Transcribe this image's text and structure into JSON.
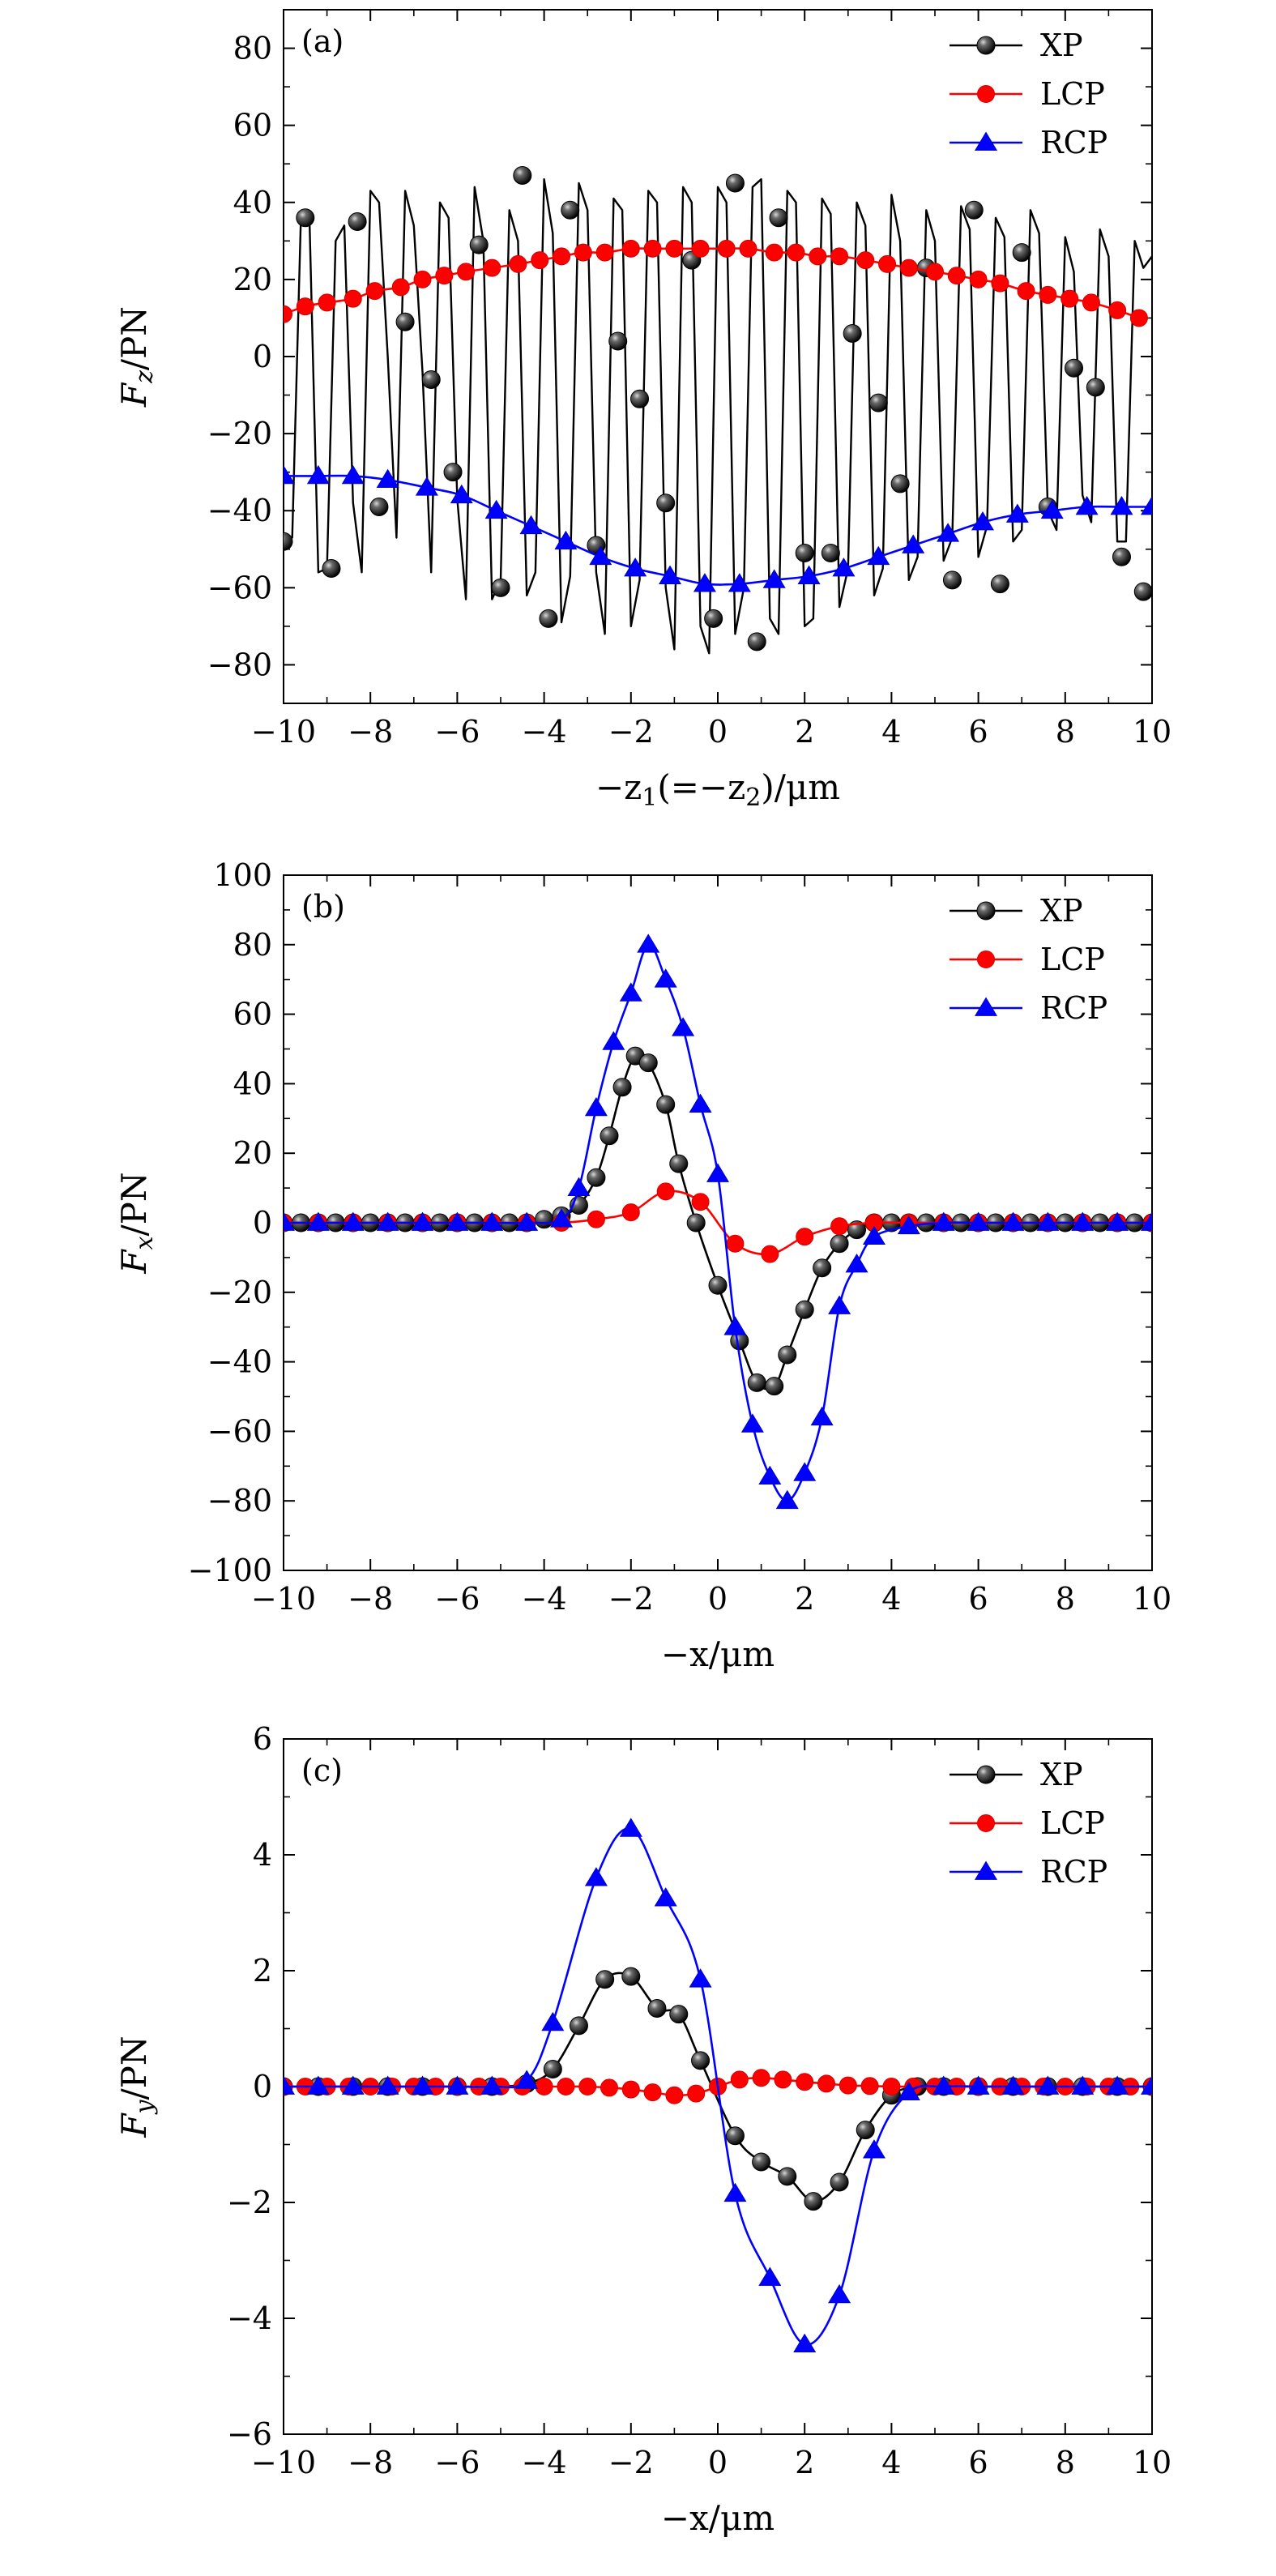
{
  "chart_data": [
    {
      "panel_label": "(a)",
      "type": "line",
      "ylabel": "F_z/PN",
      "ylabel_base": "F",
      "ylabel_sub": "z",
      "ylabel_tail": "/PN",
      "xlabel": "−z1(=−z2)/μm",
      "xlabel_parts": [
        "−z",
        "1",
        "(=−z",
        "2",
        ")/μm"
      ],
      "xlim": [
        -10,
        10
      ],
      "ylim": [
        -90,
        90
      ],
      "xticks": [
        -10,
        -8,
        -6,
        -4,
        -2,
        0,
        2,
        4,
        6,
        8,
        10
      ],
      "yticks": [
        -80,
        -60,
        -40,
        -20,
        0,
        20,
        40,
        60,
        80
      ],
      "xtick_labels": [
        "−10",
        "−8",
        "−6",
        "−4",
        "−2",
        "0",
        "2",
        "4",
        "6",
        "8",
        "10"
      ],
      "ytick_labels": [
        "−80",
        "−60",
        "−40",
        "−20",
        "0",
        "20",
        "40",
        "60",
        "80"
      ],
      "series": [
        {
          "name": "XP",
          "color": "#000000",
          "marker": "sphere",
          "line_x": [
            -10.0,
            -9.8,
            -9.6,
            -9.4,
            -9.2,
            -9.0,
            -8.8,
            -8.6,
            -8.4,
            -8.2,
            -8.0,
            -7.8,
            -7.6,
            -7.4,
            -7.2,
            -7.0,
            -6.8,
            -6.6,
            -6.4,
            -6.2,
            -6.0,
            -5.8,
            -5.6,
            -5.4,
            -5.2,
            -5.0,
            -4.8,
            -4.6,
            -4.4,
            -4.2,
            -4.0,
            -3.8,
            -3.6,
            -3.4,
            -3.2,
            -3.0,
            -2.8,
            -2.6,
            -2.4,
            -2.2,
            -2.0,
            -1.8,
            -1.6,
            -1.4,
            -1.2,
            -1.0,
            -0.8,
            -0.6,
            -0.4,
            -0.2,
            0.0,
            0.2,
            0.4,
            0.6,
            0.8,
            1.0,
            1.2,
            1.4,
            1.6,
            1.8,
            2.0,
            2.2,
            2.4,
            2.6,
            2.8,
            3.0,
            3.2,
            3.4,
            3.6,
            3.8,
            4.0,
            4.2,
            4.4,
            4.6,
            4.8,
            5.0,
            5.2,
            5.4,
            5.6,
            5.8,
            6.0,
            6.2,
            6.4,
            6.6,
            6.8,
            7.0,
            7.2,
            7.4,
            7.6,
            7.8,
            8.0,
            8.2,
            8.4,
            8.6,
            8.8,
            9.0,
            9.2,
            9.4,
            9.6,
            9.8,
            10.0
          ],
          "line_y": [
            -48,
            -47,
            36,
            34,
            -56,
            -55,
            30,
            34,
            -38,
            -56,
            43,
            40,
            0,
            -47,
            43,
            34,
            -4,
            -56,
            40,
            36,
            -37,
            -63,
            44,
            30,
            -63,
            -58,
            38,
            30,
            -62,
            -56,
            46,
            32,
            -69,
            -57,
            45,
            38,
            -56,
            -72,
            41,
            38,
            -70,
            -58,
            43,
            40,
            -60,
            -76,
            44,
            40,
            -70,
            -77,
            44,
            40,
            -72,
            -60,
            44,
            46,
            -68,
            -72,
            43,
            40,
            -70,
            -68,
            41,
            37,
            -65,
            -55,
            40,
            34,
            -62,
            -55,
            42,
            30,
            -58,
            -52,
            38,
            30,
            -53,
            -47,
            39,
            33,
            -52,
            -44,
            36,
            31,
            -48,
            -45,
            38,
            32,
            -40,
            -45,
            31,
            22,
            -36,
            -43,
            33,
            26,
            -48,
            -48,
            30,
            23,
            26
          ],
          "points_x": [
            -10.0,
            -9.5,
            -8.9,
            -8.3,
            -7.8,
            -7.2,
            -6.6,
            -6.1,
            -5.5,
            -5.0,
            -4.5,
            -3.9,
            -3.4,
            -2.8,
            -2.3,
            -1.8,
            -1.2,
            -0.6,
            -0.1,
            0.4,
            0.9,
            1.4,
            2.0,
            2.6,
            3.1,
            3.7,
            4.2,
            4.8,
            5.4,
            5.9,
            6.5,
            7.0,
            7.6,
            8.2,
            8.7,
            9.3,
            9.8
          ],
          "points_y": [
            -48,
            36,
            -55,
            35,
            -39,
            9,
            -6,
            -30,
            29,
            -60,
            47,
            -68,
            38,
            -49,
            4,
            -11,
            -38,
            25,
            -68,
            45,
            -74,
            36,
            -51,
            -51,
            6,
            -12,
            -33,
            23,
            -58,
            38,
            -59,
            27,
            -39,
            -3,
            -8,
            -52,
            -61
          ]
        },
        {
          "name": "LCP",
          "color": "#ff0000",
          "marker": "circle",
          "points_x": [
            -10.0,
            -9.5,
            -9.0,
            -8.4,
            -7.9,
            -7.3,
            -6.8,
            -6.3,
            -5.8,
            -5.2,
            -4.6,
            -4.1,
            -3.6,
            -3.1,
            -2.6,
            -2.0,
            -1.5,
            -1.0,
            -0.4,
            0.2,
            0.7,
            1.3,
            1.8,
            2.3,
            2.8,
            3.4,
            3.9,
            4.4,
            5.0,
            5.5,
            6.0,
            6.5,
            7.1,
            7.6,
            8.1,
            8.6,
            9.2,
            9.7
          ],
          "points_y": [
            11,
            13,
            14,
            15,
            17,
            18,
            20,
            21,
            22,
            23,
            24,
            25,
            26,
            27,
            27,
            28,
            28,
            28,
            28,
            28,
            28,
            27,
            27,
            26,
            26,
            25,
            24,
            23,
            22,
            21,
            20,
            19,
            17,
            16,
            15,
            14,
            12,
            10
          ]
        },
        {
          "name": "RCP",
          "color": "#0000ff",
          "marker": "triangle",
          "points_x": [
            -10.0,
            -9.2,
            -8.4,
            -7.6,
            -6.7,
            -5.9,
            -5.1,
            -4.3,
            -3.5,
            -2.7,
            -1.9,
            -1.1,
            -0.3,
            0.5,
            1.3,
            2.1,
            2.9,
            3.7,
            4.5,
            5.3,
            6.1,
            6.9,
            7.7,
            8.5,
            9.3,
            10.0
          ],
          "points_y": [
            -31,
            -31,
            -31,
            -32,
            -34,
            -36,
            -40,
            -44,
            -48,
            -52,
            -55,
            -57,
            -59,
            -59,
            -58,
            -57,
            -55,
            -52,
            -49,
            -46,
            -43,
            -41,
            -40,
            -39,
            -39,
            -39
          ]
        }
      ]
    },
    {
      "panel_label": "(b)",
      "type": "line",
      "ylabel": "F_x/PN",
      "ylabel_base": "F",
      "ylabel_sub": "x",
      "ylabel_tail": "/PN",
      "xlabel": "−x/μm",
      "xlabel_parts": [
        "−x/μm"
      ],
      "xlim": [
        -10,
        10
      ],
      "ylim": [
        -100,
        100
      ],
      "xticks": [
        -10,
        -8,
        -6,
        -4,
        -2,
        0,
        2,
        4,
        6,
        8,
        10
      ],
      "yticks": [
        -100,
        -80,
        -60,
        -40,
        -20,
        0,
        20,
        40,
        60,
        80,
        100
      ],
      "xtick_labels": [
        "−10",
        "−8",
        "−6",
        "−4",
        "−2",
        "0",
        "2",
        "4",
        "6",
        "8",
        "10"
      ],
      "ytick_labels": [
        "−100",
        "−80",
        "−60",
        "−40",
        "−20",
        "0",
        "20",
        "40",
        "60",
        "80",
        "100"
      ],
      "series": [
        {
          "name": "XP",
          "color": "#000000",
          "marker": "sphere",
          "points_x": [
            -10.0,
            -9.6,
            -9.2,
            -8.8,
            -8.4,
            -8.0,
            -7.6,
            -7.2,
            -6.8,
            -6.4,
            -6.0,
            -5.6,
            -5.2,
            -4.8,
            -4.4,
            -4.0,
            -3.6,
            -3.2,
            -2.8,
            -2.5,
            -2.2,
            -1.9,
            -1.6,
            -1.2,
            -0.9,
            -0.5,
            0.0,
            0.5,
            0.9,
            1.3,
            1.6,
            2.0,
            2.4,
            2.8,
            3.2,
            3.6,
            4.0,
            4.4,
            4.8,
            5.2,
            5.6,
            6.0,
            6.4,
            6.8,
            7.2,
            7.6,
            8.0,
            8.4,
            8.8,
            9.2,
            9.6,
            10.0
          ],
          "points_y": [
            0,
            0,
            0,
            0,
            0,
            0,
            0,
            0,
            0,
            0,
            0,
            0,
            0,
            0,
            0,
            1,
            2,
            5,
            13,
            25,
            39,
            48,
            46,
            34,
            17,
            0,
            -18,
            -34,
            -46,
            -47,
            -38,
            -25,
            -13,
            -6,
            -2,
            0,
            0,
            0,
            0,
            0,
            0,
            0,
            0,
            0,
            0,
            0,
            0,
            0,
            0,
            0,
            0,
            0
          ]
        },
        {
          "name": "LCP",
          "color": "#ff0000",
          "marker": "circle",
          "points_x": [
            -10.0,
            -9.2,
            -8.4,
            -7.6,
            -6.8,
            -6.0,
            -5.2,
            -4.4,
            -3.6,
            -2.8,
            -2.0,
            -1.2,
            -0.4,
            0.4,
            1.2,
            2.0,
            2.8,
            3.6,
            4.4,
            5.2,
            6.0,
            6.8,
            7.6,
            8.4,
            9.2,
            10.0
          ],
          "points_y": [
            0,
            0,
            0,
            0,
            0,
            0,
            0,
            0,
            0,
            1,
            3,
            9,
            6,
            -6,
            -9,
            -4,
            -1,
            0,
            0,
            0,
            0,
            0,
            0,
            0,
            0,
            0
          ]
        },
        {
          "name": "RCP",
          "color": "#0000ff",
          "marker": "triangle",
          "points_x": [
            -10.0,
            -9.2,
            -8.4,
            -7.6,
            -6.8,
            -6.0,
            -5.2,
            -4.4,
            -3.6,
            -3.2,
            -2.8,
            -2.4,
            -2.0,
            -1.6,
            -1.2,
            -0.8,
            -0.4,
            0.0,
            0.4,
            0.8,
            1.2,
            1.6,
            2.0,
            2.4,
            2.8,
            3.2,
            3.6,
            4.4,
            5.2,
            6.0,
            6.8,
            7.6,
            8.4,
            9.2,
            10.0
          ],
          "points_y": [
            0,
            0,
            0,
            0,
            0,
            0,
            0,
            0,
            1,
            10,
            33,
            52,
            66,
            80,
            70,
            56,
            34,
            14,
            -30,
            -58,
            -73,
            -80,
            -72,
            -56,
            -24,
            -12,
            -4,
            -1,
            0,
            0,
            0,
            0,
            0,
            0,
            0
          ]
        }
      ]
    },
    {
      "panel_label": "(c)",
      "type": "line",
      "ylabel": "F_y/PN",
      "ylabel_base": "F",
      "ylabel_sub": "y",
      "ylabel_tail": "/PN",
      "xlabel": "−x/μm",
      "xlabel_parts": [
        "−x/μm"
      ],
      "xlim": [
        -10,
        10
      ],
      "ylim": [
        -6,
        6
      ],
      "xticks": [
        -10,
        -8,
        -6,
        -4,
        -2,
        0,
        2,
        4,
        6,
        8,
        10
      ],
      "yticks": [
        -6,
        -4,
        -2,
        0,
        2,
        4,
        6
      ],
      "xtick_labels": [
        "−10",
        "−8",
        "−6",
        "−4",
        "−2",
        "0",
        "2",
        "4",
        "6",
        "8",
        "10"
      ],
      "ytick_labels": [
        "−6",
        "−4",
        "−2",
        "0",
        "2",
        "4",
        "6"
      ],
      "series": [
        {
          "name": "XP",
          "color": "#000000",
          "marker": "sphere",
          "points_x": [
            -10.0,
            -9.2,
            -8.4,
            -7.6,
            -6.8,
            -6.0,
            -5.2,
            -4.4,
            -3.8,
            -3.2,
            -2.6,
            -2.0,
            -1.4,
            -0.9,
            -0.4,
            0.4,
            1.0,
            1.6,
            2.2,
            2.8,
            3.4,
            4.0,
            4.6,
            5.2,
            6.0,
            6.8,
            7.6,
            8.4,
            9.2,
            10.0
          ],
          "points_y": [
            0,
            0,
            0,
            0,
            0,
            0,
            0,
            0.05,
            0.3,
            1.05,
            1.85,
            1.9,
            1.35,
            1.25,
            0.45,
            -0.85,
            -1.3,
            -1.55,
            -1.98,
            -1.65,
            -0.75,
            -0.15,
            0,
            0,
            0,
            0,
            0,
            0,
            0,
            0
          ]
        },
        {
          "name": "LCP",
          "color": "#ff0000",
          "marker": "circle",
          "points_x": [
            -10.0,
            -9.5,
            -9.0,
            -8.5,
            -8.0,
            -7.5,
            -7.0,
            -6.5,
            -6.0,
            -5.5,
            -5.0,
            -4.5,
            -4.0,
            -3.5,
            -3.0,
            -2.5,
            -2.0,
            -1.5,
            -1.0,
            -0.5,
            0.0,
            0.5,
            1.0,
            1.5,
            2.0,
            2.5,
            3.0,
            3.5,
            4.0,
            4.5,
            5.0,
            5.5,
            6.0,
            6.5,
            7.0,
            7.5,
            8.0,
            8.5,
            9.0,
            9.5,
            10.0
          ],
          "points_y": [
            0,
            0,
            0,
            0,
            0,
            0,
            0,
            0,
            0,
            0,
            0,
            0,
            0,
            0,
            0,
            -0.02,
            -0.05,
            -0.1,
            -0.15,
            -0.12,
            0,
            0.12,
            0.15,
            0.12,
            0.08,
            0.05,
            0.02,
            0.01,
            0,
            0,
            0,
            0,
            0,
            0,
            0,
            0,
            0,
            0,
            0,
            0,
            0
          ]
        },
        {
          "name": "RCP",
          "color": "#0000ff",
          "marker": "triangle",
          "points_x": [
            -10.0,
            -9.2,
            -8.4,
            -7.6,
            -6.8,
            -6.0,
            -5.2,
            -4.4,
            -3.8,
            -2.8,
            -2.0,
            -1.2,
            -0.4,
            0.4,
            1.2,
            2.0,
            2.8,
            3.6,
            4.4,
            5.2,
            6.0,
            6.8,
            7.6,
            8.4,
            9.2,
            10.0
          ],
          "points_y": [
            0,
            0,
            0,
            0,
            0,
            0,
            0,
            0.1,
            1.1,
            3.6,
            4.45,
            3.25,
            1.85,
            -1.85,
            -3.3,
            -4.45,
            -3.6,
            -1.1,
            -0.1,
            0,
            0,
            0,
            0,
            0,
            0,
            0
          ]
        }
      ]
    }
  ]
}
